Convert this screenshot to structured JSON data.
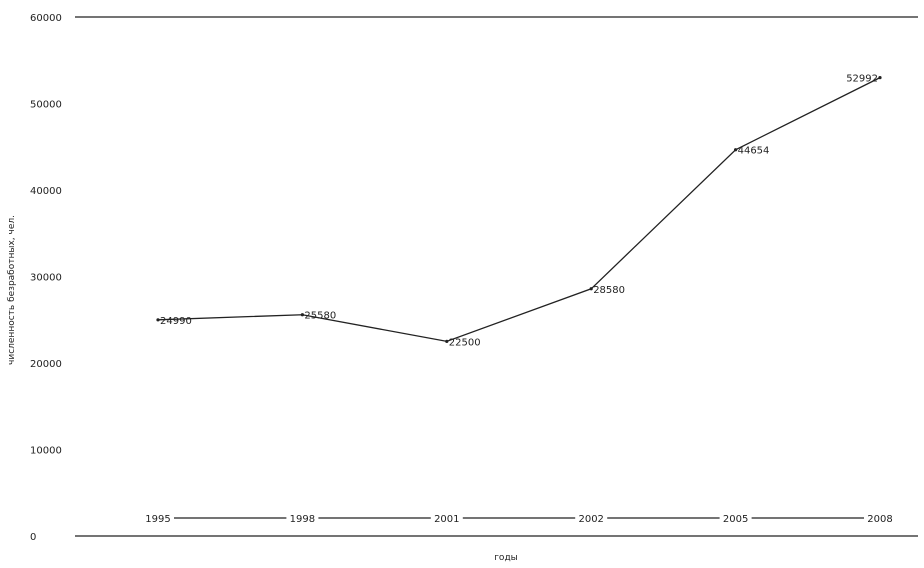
{
  "chart_data": {
    "type": "line",
    "title": "",
    "xlabel": "годы",
    "ylabel": "численность безработных, чел.",
    "ylim": [
      0,
      60000
    ],
    "y_ticks": [
      0,
      10000,
      20000,
      30000,
      40000,
      50000,
      60000
    ],
    "y_tick_labels": [
      "0",
      "10000",
      "20000",
      "30000",
      "40000",
      "50000",
      "60000"
    ],
    "categories": [
      "1995",
      "1998",
      "2001",
      "2002",
      "2005",
      "2008"
    ],
    "series": [
      {
        "values": [
          24990,
          25580,
          22500,
          28580,
          44654,
          52992
        ],
        "data_labels": [
          "24990",
          "25580",
          "22500",
          "28580",
          "44654",
          "52992"
        ]
      }
    ],
    "grid": false,
    "legend": "none"
  }
}
